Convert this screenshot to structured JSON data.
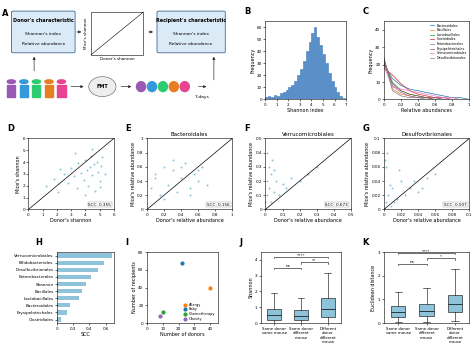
{
  "diagram": {
    "panel": "A",
    "donor_box": {
      "title": "Donor's characteristic",
      "lines": [
        "Shannon's index",
        "Relative abundance"
      ]
    },
    "recipient_box": {
      "title": "Recipient's characteristic",
      "lines": [
        "Shannon's index",
        "Relative abundance"
      ]
    },
    "scatter_x_label": "Donor's shannon",
    "scatter_y_label": "Mice's shannon",
    "fmt_label": "FMT",
    "duration_label": "7-days"
  },
  "chart_data": [
    {
      "panel": "B",
      "type": "histogram",
      "x_label": "Shannon index",
      "y_label": "Frequency",
      "color": "#5b8fc7",
      "bins": [
        0,
        0.25,
        0.5,
        0.75,
        1,
        1.25,
        1.5,
        1.75,
        2,
        2.25,
        2.5,
        2.75,
        3,
        3.25,
        3.5,
        3.75,
        4,
        4.25,
        4.5,
        4.75,
        5,
        5.25,
        5.5,
        5.75,
        6,
        6.25,
        6.5,
        6.75,
        7
      ],
      "values": [
        2,
        3,
        2,
        4,
        3,
        5,
        6,
        8,
        10,
        12,
        15,
        20,
        25,
        32,
        40,
        48,
        55,
        60,
        52,
        45,
        38,
        30,
        22,
        15,
        10,
        6,
        3,
        1
      ],
      "xlim": [
        0,
        7
      ],
      "xticks": [
        0,
        1,
        2,
        3,
        4,
        5,
        6,
        7
      ],
      "ylim": [
        0,
        65
      ],
      "yticks": [
        0,
        10,
        20,
        30,
        40,
        50,
        60
      ]
    },
    {
      "panel": "C",
      "type": "line",
      "x_label": "Relative abundances",
      "y_label": "Frequency",
      "legend": "upper right",
      "x": [
        0,
        0.1,
        0.2,
        0.3,
        0.4,
        0.5,
        0.6,
        0.7,
        0.8,
        0.9,
        1
      ],
      "series": [
        {
          "name": "Bacteroidales",
          "color": "#1f77b4",
          "values": [
            20,
            12,
            8,
            6,
            5,
            4,
            3,
            2,
            1,
            1,
            0
          ]
        },
        {
          "name": "Bacillales",
          "color": "#ff7f0e",
          "values": [
            24,
            6,
            3,
            2,
            1,
            1,
            0,
            0,
            0,
            0,
            0
          ]
        },
        {
          "name": "Lactobacillales",
          "color": "#2ca02c",
          "values": [
            22,
            10,
            5,
            3,
            2,
            1,
            1,
            0,
            0,
            0,
            0
          ]
        },
        {
          "name": "Clostridiales",
          "color": "#d62728",
          "values": [
            18,
            14,
            9,
            5,
            3,
            2,
            1,
            1,
            0,
            0,
            0
          ]
        },
        {
          "name": "Enterobacterales",
          "color": "#9467bd",
          "values": [
            23,
            8,
            4,
            2,
            1,
            1,
            1,
            0,
            0,
            0,
            0
          ]
        },
        {
          "name": "Erysipelotrichales",
          "color": "#8c564b",
          "values": [
            21,
            9,
            5,
            3,
            2,
            1,
            0,
            0,
            0,
            0,
            0
          ]
        },
        {
          "name": "Verrucomicrobiales",
          "color": "#e377c2",
          "values": [
            19,
            7,
            6,
            5,
            4,
            3,
            2,
            1,
            1,
            0,
            0
          ]
        },
        {
          "name": "Desulfovibrionales",
          "color": "#7f7f7f",
          "values": [
            24,
            5,
            2,
            1,
            1,
            0,
            0,
            0,
            0,
            0,
            0
          ]
        }
      ],
      "xlim": [
        0,
        1
      ],
      "xticks": [
        0,
        0.2,
        0.4,
        0.6,
        0.8,
        1
      ],
      "ylim": [
        0,
        45
      ],
      "yticks": [
        0,
        10,
        20,
        30,
        40
      ]
    },
    {
      "panel": "D",
      "type": "scatter",
      "x_label": "Donor's shannon",
      "y_label": "Mice's shannon",
      "color": "#8ec3da",
      "annotation": "SCC: 0.355",
      "x": [
        1.2,
        1.8,
        2.1,
        2.5,
        2.8,
        3.0,
        3.2,
        3.4,
        3.5,
        3.7,
        3.9,
        4.0,
        4.1,
        4.2,
        4.3,
        4.4,
        4.5,
        4.6,
        4.7,
        4.8,
        4.9,
        5.0,
        5.1,
        5.2,
        5.4,
        3.3,
        4.0,
        4.5,
        2.2,
        5.0
      ],
      "values": [
        2.0,
        2.6,
        1.5,
        3.0,
        2.2,
        3.5,
        2.8,
        1.8,
        3.9,
        3.1,
        2.5,
        4.2,
        3.3,
        2.0,
        3.6,
        4.5,
        2.9,
        3.8,
        1.6,
        4.0,
        3.2,
        2.4,
        3.7,
        4.4,
        3.0,
        4.8,
        1.2,
        5.1,
        3.4,
        1.9
      ],
      "xlim": [
        0,
        6
      ],
      "xticks": [
        0,
        1,
        2,
        3,
        4,
        5,
        6
      ],
      "ylim": [
        0,
        6
      ],
      "yticks": [
        0,
        1,
        2,
        3,
        4,
        5,
        6
      ]
    },
    {
      "panel": "E",
      "type": "scatter",
      "title": "Bacteroidales",
      "x_label": "Donor's relative abundance",
      "y_label": "Mice's relative abundance",
      "color": "#8ec3da",
      "annotation": "SCC: 0.156",
      "x": [
        0.05,
        0.1,
        0.15,
        0.2,
        0.25,
        0.3,
        0.35,
        0.4,
        0.45,
        0.5,
        0.55,
        0.6,
        0.65,
        0.7,
        0.3,
        0.2,
        0.5,
        0.6,
        0.1,
        0.4
      ],
      "values": [
        0.3,
        0.5,
        0.2,
        0.6,
        0.35,
        0.55,
        0.25,
        0.45,
        0.65,
        0.3,
        0.5,
        0.4,
        0.6,
        0.35,
        0.7,
        0.15,
        0.2,
        0.55,
        0.45,
        0.6
      ],
      "xlim": [
        0,
        1
      ],
      "xticks": [
        0,
        0.2,
        0.4,
        0.6,
        0.8,
        1
      ],
      "ylim": [
        0,
        1
      ],
      "yticks": [
        0,
        0.2,
        0.4,
        0.6,
        0.8,
        1
      ]
    },
    {
      "panel": "F",
      "type": "scatter",
      "title": "Verrucomicrobiales",
      "x_label": "Donor's relative abundance",
      "y_label": "Mice's relative abundance",
      "color": "#8ec3da",
      "annotation": "SCC: 0.673",
      "x": [
        0.0,
        0.0,
        0.01,
        0.01,
        0.02,
        0.02,
        0.03,
        0.04,
        0.05,
        0.06,
        0.08,
        0.1,
        0.12,
        0.15,
        0.2,
        0.25,
        0.3,
        0.01,
        0.03,
        0.05
      ],
      "values": [
        0.0,
        0.05,
        0.1,
        0.2,
        0.15,
        0.3,
        0.25,
        0.35,
        0.12,
        0.2,
        0.1,
        0.18,
        0.15,
        0.22,
        0.2,
        0.25,
        0.3,
        0.4,
        0.05,
        0.28
      ],
      "xlim": [
        0,
        0.5
      ],
      "xticks": [
        0,
        0.1,
        0.2,
        0.3,
        0.4,
        0.5
      ],
      "ylim": [
        0,
        0.5
      ],
      "yticks": [
        0,
        0.1,
        0.2,
        0.3,
        0.4,
        0.5
      ]
    },
    {
      "panel": "G",
      "type": "scatter",
      "title": "Desulfovibrionales",
      "x_label": "Donor's relative abundance",
      "y_label": "Mice's relative abundance",
      "color": "#8ec3da",
      "annotation": "SCC: 0.507",
      "x": [
        0.0,
        0.002,
        0.005,
        0.008,
        0.01,
        0.015,
        0.02,
        0.025,
        0.03,
        0.04,
        0.05,
        0.06,
        0.003,
        0.007,
        0.012,
        0.018,
        0.035,
        0.045,
        0.001,
        0.004
      ],
      "values": [
        0.0,
        0.01,
        0.02,
        0.005,
        0.03,
        0.015,
        0.04,
        0.02,
        0.03,
        0.025,
        0.045,
        0.05,
        0.06,
        0.035,
        0.01,
        0.055,
        0.04,
        0.03,
        0.07,
        0.08
      ],
      "xlim": [
        0,
        0.1
      ],
      "xticks": [
        0,
        0.02,
        0.04,
        0.06,
        0.08,
        0.1
      ],
      "ylim": [
        0,
        0.1
      ],
      "yticks": [
        0,
        0.02,
        0.04,
        0.06,
        0.08,
        0.1
      ]
    },
    {
      "panel": "H",
      "type": "bar",
      "orientation": "horizontal",
      "x_label": "SCC",
      "color": "#8ec3da",
      "categories": [
        "Verrucomicrobiales",
        "Bifidobacteriales",
        "Desulfovibrionales",
        "Enterobacterales",
        "Shannon",
        "Bacillales",
        "Lactobacillales",
        "Bacteroidales",
        "Erysipelotrichales",
        "Clostridiales"
      ],
      "values": [
        0.673,
        0.58,
        0.507,
        0.42,
        0.355,
        0.31,
        0.27,
        0.156,
        0.13,
        0.05
      ],
      "xlim": [
        0,
        0.7
      ],
      "xticks": [
        0,
        0.2,
        0.4,
        0.6
      ]
    },
    {
      "panel": "I",
      "type": "scatter",
      "x_label": "Number of donors",
      "y_label": "Number of recipients",
      "legend": "lower right",
      "series": [
        {
          "name": "Allergy",
          "color": "#ff7f0e",
          "x": [
            40
          ],
          "values": [
            40
          ]
        },
        {
          "name": "Baby",
          "color": "#1f77b4",
          "x": [
            22
          ],
          "values": [
            68
          ]
        },
        {
          "name": "Chemotherapy",
          "color": "#2ca02c",
          "x": [
            10
          ],
          "values": [
            12
          ]
        },
        {
          "name": "Obesity",
          "color": "#9467bd",
          "x": [
            8
          ],
          "values": [
            8
          ]
        }
      ],
      "xlim": [
        0,
        45
      ],
      "xticks": [
        0,
        10,
        20,
        30,
        40
      ],
      "ylim": [
        0,
        80
      ],
      "yticks": [
        0,
        20,
        40,
        60,
        80
      ]
    },
    {
      "panel": "J",
      "type": "box",
      "y_label": "Shannon",
      "color": "#8ec3da",
      "categories": [
        "Same donor same mouse",
        "Same donor different mouse",
        "Different donor different mouse"
      ],
      "boxes": [
        {
          "whislo": 0,
          "q1": 0.2,
          "med": 0.5,
          "q3": 0.9,
          "whishi": 1.9
        },
        {
          "whislo": 0,
          "q1": 0.2,
          "med": 0.45,
          "q3": 0.8,
          "whishi": 1.6
        },
        {
          "whislo": 0,
          "q1": 0.4,
          "med": 0.9,
          "q3": 1.6,
          "whishi": 3.2
        }
      ],
      "comparisons": [
        {
          "pair": [
            0,
            1
          ],
          "label": "ns"
        },
        {
          "pair": [
            1,
            2
          ],
          "label": "**"
        },
        {
          "pair": [
            0,
            2
          ],
          "label": "****"
        }
      ],
      "ylim": [
        0,
        4.5
      ],
      "yticks": [
        0,
        1,
        2,
        3,
        4
      ]
    },
    {
      "panel": "K",
      "type": "box",
      "y_label": "Euclidean distance",
      "color": "#8ec3da",
      "categories": [
        "Same donor same mouse",
        "Same donor different mouse",
        "Different donor different mouse"
      ],
      "boxes": [
        {
          "whislo": 0.05,
          "q1": 0.25,
          "med": 0.45,
          "q3": 0.7,
          "whishi": 1.3
        },
        {
          "whislo": 0.05,
          "q1": 0.3,
          "med": 0.5,
          "q3": 0.8,
          "whishi": 1.5
        },
        {
          "whislo": 0.1,
          "q1": 0.45,
          "med": 0.8,
          "q3": 1.2,
          "whishi": 2.3
        }
      ],
      "comparisons": [
        {
          "pair": [
            0,
            1
          ],
          "label": "ns"
        },
        {
          "pair": [
            1,
            2
          ],
          "label": "*"
        },
        {
          "pair": [
            0,
            2
          ],
          "label": "****"
        }
      ],
      "ylim": [
        0,
        3
      ],
      "yticks": [
        0,
        1,
        2,
        3
      ]
    }
  ]
}
